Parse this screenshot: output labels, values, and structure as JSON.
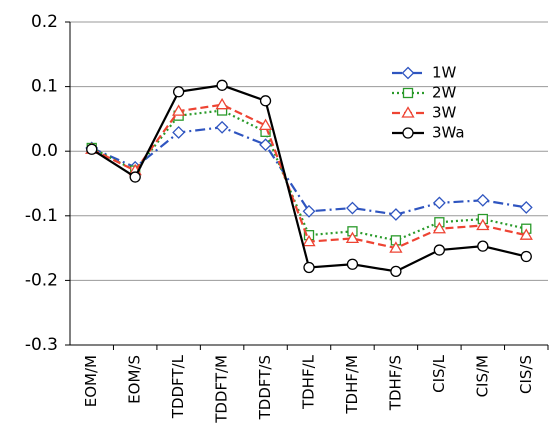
{
  "chart_data": {
    "type": "line",
    "categories": [
      "EOM/M",
      "EOM/S",
      "TDDFT/L",
      "TDDFT/M",
      "TDDFT/S",
      "TDHF/L",
      "TDHF/M",
      "TDHF/S",
      "CIS/L",
      "CIS/M",
      "CIS/S"
    ],
    "series": [
      {
        "name": "1W",
        "color": "#2f55c0",
        "marker": "diamond",
        "linestyle": "dashdot",
        "values": [
          0.005,
          -0.025,
          0.029,
          0.037,
          0.01,
          -0.093,
          -0.088,
          -0.098,
          -0.08,
          -0.076,
          -0.087
        ]
      },
      {
        "name": "2W",
        "color": "#2a9a2a",
        "marker": "square",
        "linestyle": "dotted",
        "values": [
          0.005,
          -0.03,
          0.055,
          0.063,
          0.03,
          -0.13,
          -0.124,
          -0.138,
          -0.11,
          -0.105,
          -0.12
        ]
      },
      {
        "name": "3W",
        "color": "#ee4433",
        "marker": "triangle",
        "linestyle": "dashed",
        "values": [
          0.003,
          -0.03,
          0.062,
          0.072,
          0.04,
          -0.14,
          -0.135,
          -0.15,
          -0.12,
          -0.115,
          -0.13
        ]
      },
      {
        "name": "3Wa",
        "color": "#000000",
        "marker": "circle",
        "linestyle": "solid",
        "values": [
          0.003,
          -0.04,
          0.092,
          0.102,
          0.078,
          -0.18,
          -0.175,
          -0.186,
          -0.153,
          -0.147,
          -0.163
        ]
      }
    ],
    "ylim": [
      -0.3,
      0.2
    ],
    "yticks": [
      -0.3,
      -0.2,
      -0.1,
      {
        "value": 0,
        "label": "0.0"
      },
      0.1,
      0.2
    ],
    "grid": true,
    "legend": "upper right"
  }
}
